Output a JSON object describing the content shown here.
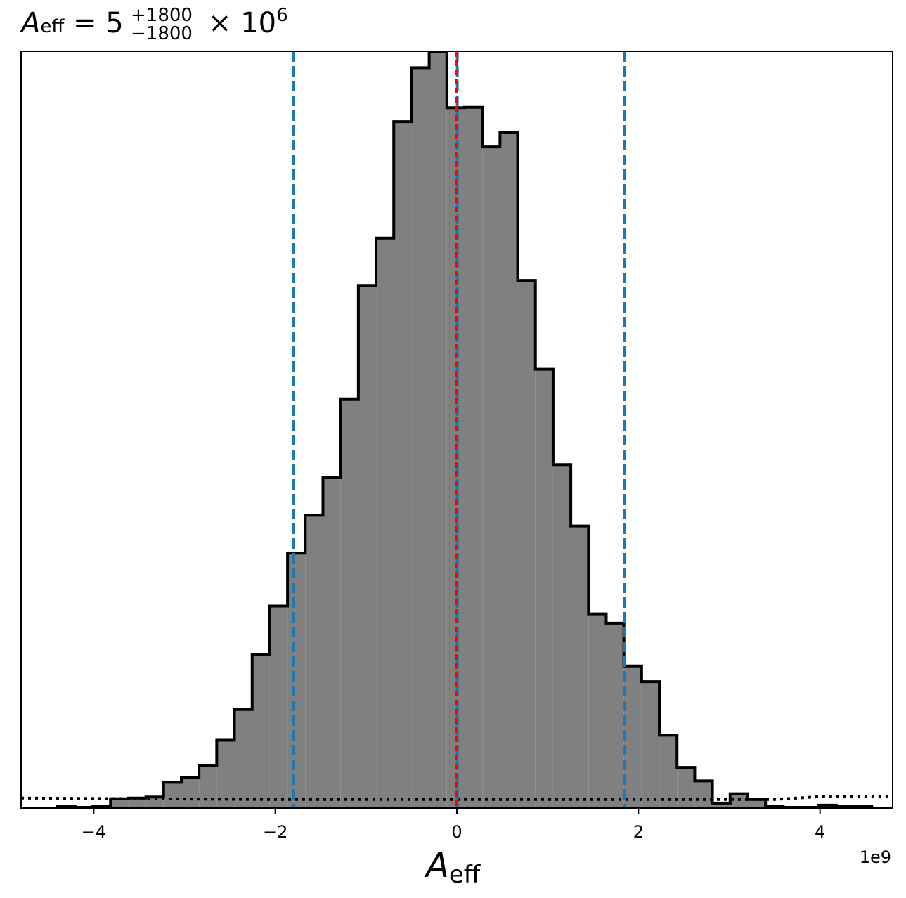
{
  "chart_data": {
    "type": "bar",
    "title": {
      "symbol": "A",
      "symbol_sub": "eff",
      "equals": " = 5",
      "upper": "+1800",
      "lower": "−1800",
      "times": " × 10",
      "exp": "6"
    },
    "xlabel": {
      "symbol": "A",
      "sub": "eff"
    },
    "x_offset_text": "1e9",
    "xlim": [
      -4.8,
      4.8
    ],
    "ylim": [
      0,
      2120
    ],
    "x_unit_scale": 1000000000,
    "xticks": [
      {
        "value": -4,
        "label": "−4"
      },
      {
        "value": -2,
        "label": "−2"
      },
      {
        "value": 0,
        "label": "0"
      },
      {
        "value": 2,
        "label": "2"
      },
      {
        "value": 4,
        "label": "4"
      }
    ],
    "bin_edges": [
      -4.4,
      -4.205,
      -4.01,
      -3.815,
      -3.62,
      -3.425,
      -3.23,
      -3.035,
      -2.84,
      -2.645,
      -2.45,
      -2.255,
      -2.06,
      -1.865,
      -1.67,
      -1.475,
      -1.28,
      -1.085,
      -0.89,
      -0.695,
      -0.5,
      -0.305,
      -0.11,
      0.085,
      0.28,
      0.475,
      0.67,
      0.865,
      1.06,
      1.255,
      1.45,
      1.645,
      1.84,
      2.035,
      2.23,
      2.425,
      2.62,
      2.815,
      3.01,
      3.205,
      3.4,
      3.595,
      3.79,
      3.985,
      4.18,
      4.375,
      4.57
    ],
    "counts": [
      4,
      2,
      6,
      26,
      28,
      31,
      72,
      86,
      118,
      190,
      276,
      430,
      566,
      714,
      820,
      926,
      1146,
      1464,
      1597,
      1923,
      2074,
      2120,
      1962,
      1963,
      1852,
      1893,
      1478,
      1229,
      962,
      790,
      544,
      518,
      398,
      354,
      204,
      114,
      76,
      14,
      40,
      24,
      5,
      2,
      2,
      8,
      4,
      6
    ],
    "fill_color": "#808080",
    "edge_color": "#000000",
    "vlines": [
      {
        "value": -1.8,
        "color": "#1f77b4",
        "style": "dashed"
      },
      {
        "value": 0.005,
        "color": "#1f77b4",
        "style": "dashed"
      },
      {
        "value": 1.85,
        "color": "#1f77b4",
        "style": "dashed"
      },
      {
        "value": 0.0,
        "color": "#ff0000",
        "style": "dashed"
      }
    ],
    "prior_line": {
      "color": "#000000",
      "style": "dotted",
      "x": [
        -4.8,
        -2.0,
        0,
        2.0,
        3.5,
        4.0,
        4.8
      ],
      "y": [
        28,
        24,
        24,
        24,
        24,
        32,
        32
      ]
    },
    "grid": false,
    "legend": "none"
  }
}
